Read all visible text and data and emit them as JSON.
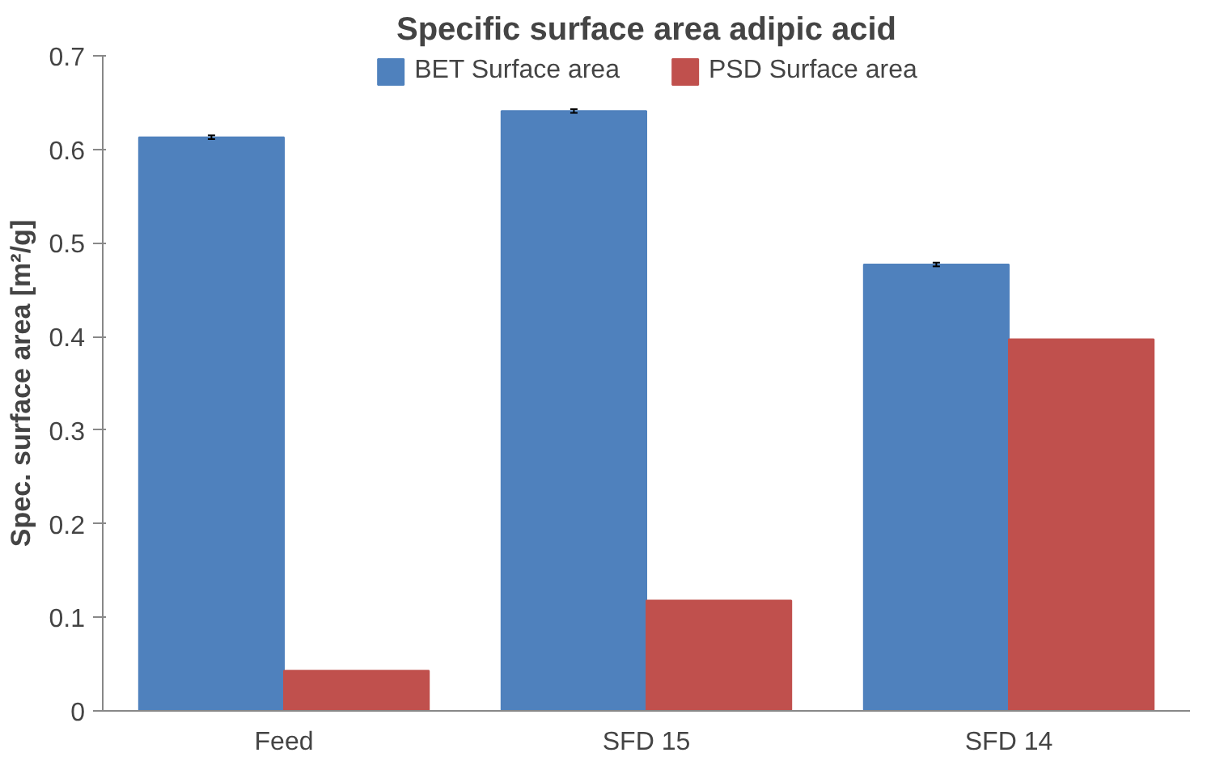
{
  "chart_data": {
    "type": "bar",
    "title": "Specific surface area adipic acid",
    "ylabel": "Spec. surface area [m²/g]",
    "categories": [
      "Feed",
      "SFD 15",
      "SFD 14"
    ],
    "series": [
      {
        "name": "BET Surface area",
        "color": "#4f81bd",
        "values": [
          0.613,
          0.641,
          0.477
        ],
        "errors": [
          0.002,
          0.002,
          0.002
        ]
      },
      {
        "name": "PSD Surface area",
        "color": "#c0504d",
        "values": [
          0.043,
          0.118,
          0.397
        ]
      }
    ],
    "ylim": [
      0,
      0.7
    ],
    "yticks": [
      0,
      0.1,
      0.2,
      0.3,
      0.4,
      0.5,
      0.6,
      0.7
    ],
    "grid": false,
    "legend": "top"
  }
}
